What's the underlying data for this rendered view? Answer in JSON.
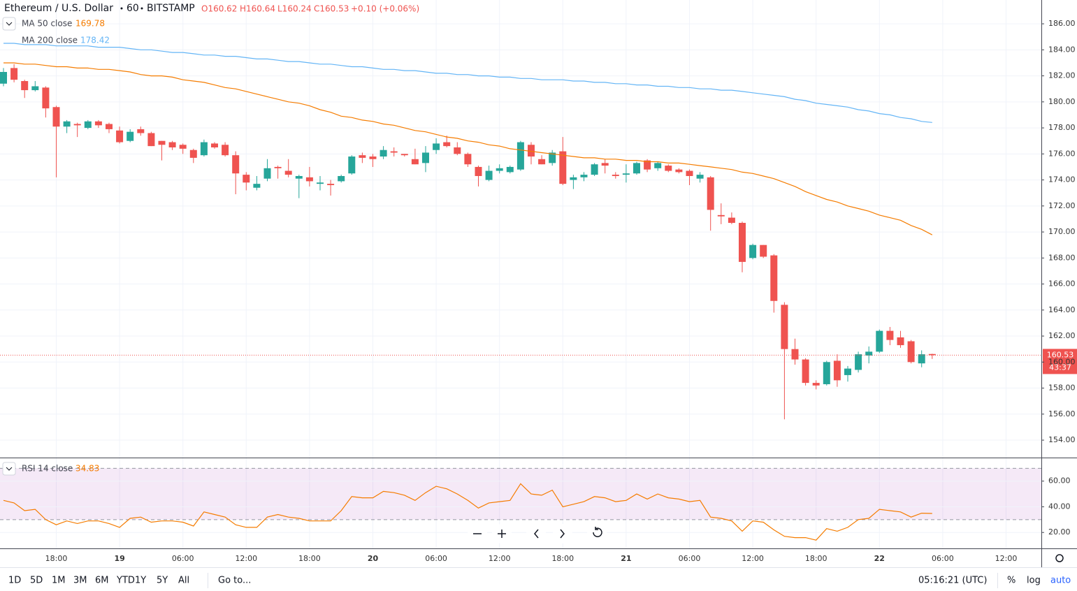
{
  "header": {
    "symbol": "Ethereum / U.S. Dollar",
    "interval": "60",
    "exchange": "BITSTAMP",
    "open": "O160.62",
    "high": "H160.64",
    "low": "L160.24",
    "close": "C160.53",
    "change": "+0.10 (+0.06%)",
    "countdown": "43:37"
  },
  "toolbar": {
    "ranges": [
      "1D",
      "5D",
      "1M",
      "3M",
      "6M",
      "YTD",
      "1Y",
      "5Y",
      "All"
    ],
    "goto": "Go to...",
    "clock": "05:16:21 (UTC)",
    "percent": "%",
    "log": "log",
    "auto": "auto"
  },
  "chart_data": [
    {
      "type": "candlestick",
      "up_color": "#26a69a",
      "down_color": "#ef5350",
      "last_price_color": "#ef5350",
      "categories": [
        null,
        null,
        null,
        null,
        null,
        "18:00",
        null,
        null,
        null,
        null,
        null,
        "19",
        null,
        null,
        null,
        null,
        null,
        "06:00",
        null,
        null,
        null,
        null,
        null,
        "12:00",
        null,
        null,
        null,
        null,
        null,
        "18:00",
        null,
        null,
        null,
        null,
        null,
        "20",
        null,
        null,
        null,
        null,
        null,
        "06:00",
        null,
        null,
        null,
        null,
        null,
        "12:00",
        null,
        null,
        null,
        null,
        null,
        "18:00",
        null,
        null,
        null,
        null,
        null,
        "21",
        null,
        null,
        null,
        null,
        null,
        "06:00",
        null,
        null,
        null,
        null,
        null,
        "12:00",
        null,
        null,
        null,
        null,
        null,
        "18:00",
        null,
        null,
        null,
        null,
        null,
        "22",
        null,
        null,
        null,
        null,
        null,
        "06:00",
        null,
        null,
        null,
        null,
        null,
        "12:00"
      ],
      "open": [
        181.4,
        182.6,
        181.6,
        180.9,
        181.1,
        179.6,
        178.1,
        178.3,
        178.0,
        178.5,
        178.3,
        177.8,
        177.0,
        177.9,
        177.6,
        177.0,
        176.9,
        176.7,
        176.3,
        175.9,
        176.8,
        176.7,
        175.9,
        174.4,
        173.4,
        174.1,
        175.0,
        174.7,
        174.1,
        174.2,
        173.7,
        173.7,
        173.9,
        174.5,
        175.9,
        175.8,
        175.8,
        176.2,
        176.0,
        175.6,
        175.3,
        176.3,
        176.9,
        176.5,
        176.0,
        175.0,
        174.0,
        174.7,
        174.6,
        174.8,
        176.7,
        175.6,
        175.3,
        176.2,
        174.0,
        174.2,
        174.4,
        175.3,
        174.4,
        174.4,
        174.5,
        175.5,
        174.9,
        175.1,
        174.8,
        174.7,
        174.1,
        174.2,
        171.3,
        171.1,
        170.7,
        168.0,
        169.0,
        168.2,
        164.4,
        161.0,
        160.2,
        158.4,
        158.3,
        160.1,
        159.0,
        159.4,
        160.5,
        160.8,
        162.4,
        161.9,
        161.6,
        159.9,
        160.62,
        null,
        null,
        null,
        null,
        null,
        null,
        null
      ],
      "high": [
        182.6,
        182.9,
        181.7,
        181.6,
        181.2,
        179.7,
        178.6,
        178.4,
        178.6,
        178.6,
        178.4,
        178.1,
        177.9,
        178.1,
        177.7,
        177.0,
        177.0,
        176.8,
        176.4,
        177.1,
        176.9,
        176.9,
        176.2,
        174.6,
        174.3,
        175.6,
        175.1,
        175.6,
        174.4,
        175.0,
        174.3,
        174.0,
        174.4,
        175.9,
        176.1,
        176.0,
        176.6,
        176.5,
        176.0,
        176.4,
        176.6,
        177.2,
        177.4,
        176.9,
        176.1,
        175.1,
        175.1,
        175.2,
        175.1,
        177.0,
        176.9,
        175.9,
        176.3,
        177.3,
        174.4,
        174.6,
        175.3,
        175.6,
        174.6,
        175.2,
        175.4,
        175.6,
        175.4,
        175.2,
        174.9,
        174.8,
        174.6,
        174.3,
        172.2,
        171.5,
        170.8,
        169.1,
        169.0,
        168.3,
        164.6,
        161.8,
        160.3,
        158.6,
        160.1,
        160.6,
        159.7,
        160.8,
        161.2,
        162.5,
        162.7,
        162.4,
        161.7,
        160.9,
        160.64,
        null,
        null,
        null,
        null,
        null,
        null,
        null
      ],
      "low": [
        181.2,
        181.5,
        180.3,
        180.8,
        178.8,
        174.2,
        177.6,
        177.3,
        177.9,
        178.0,
        177.6,
        176.8,
        176.9,
        177.4,
        176.6,
        175.5,
        176.3,
        176.0,
        175.3,
        175.8,
        176.4,
        175.8,
        172.9,
        173.2,
        173.2,
        173.9,
        174.1,
        174.2,
        172.6,
        173.5,
        173.2,
        172.8,
        173.8,
        174.4,
        175.3,
        175.0,
        175.6,
        175.8,
        175.8,
        175.2,
        174.6,
        176.0,
        176.5,
        175.9,
        175.0,
        173.5,
        173.9,
        174.5,
        174.5,
        174.7,
        175.2,
        175.2,
        175.1,
        173.6,
        173.3,
        173.9,
        174.3,
        174.5,
        174.1,
        173.8,
        174.4,
        174.6,
        174.7,
        174.6,
        174.5,
        173.6,
        173.8,
        170.1,
        170.6,
        170.6,
        166.9,
        167.9,
        168.0,
        163.8,
        155.6,
        159.8,
        158.2,
        157.9,
        158.2,
        158.1,
        158.5,
        159.2,
        159.9,
        160.7,
        161.3,
        161.1,
        159.9,
        159.6,
        160.24,
        null,
        null,
        null,
        null,
        null,
        null,
        null
      ],
      "close": [
        182.3,
        181.7,
        180.9,
        181.2,
        179.5,
        178.1,
        178.5,
        178.2,
        178.5,
        178.2,
        177.9,
        176.9,
        177.7,
        177.6,
        176.6,
        176.7,
        176.5,
        176.4,
        175.7,
        176.9,
        176.5,
        175.9,
        174.5,
        173.8,
        173.7,
        174.9,
        174.9,
        174.4,
        174.3,
        173.9,
        173.8,
        173.6,
        174.3,
        175.8,
        175.7,
        175.6,
        176.3,
        176.1,
        175.9,
        175.2,
        176.1,
        176.8,
        176.6,
        176.0,
        175.2,
        174.3,
        174.7,
        174.9,
        175.0,
        176.9,
        175.8,
        175.2,
        176.1,
        173.7,
        174.2,
        174.4,
        175.2,
        175.1,
        174.3,
        174.5,
        175.3,
        174.8,
        175.3,
        174.7,
        174.6,
        174.3,
        174.4,
        171.7,
        171.2,
        170.7,
        167.7,
        169.0,
        168.1,
        164.7,
        161.0,
        160.2,
        158.4,
        158.2,
        160.0,
        158.6,
        159.5,
        160.6,
        160.8,
        162.4,
        161.7,
        161.3,
        160.0,
        160.6,
        160.53,
        null,
        null,
        null,
        null,
        null,
        null,
        null
      ],
      "series": [
        {
          "name": "MA 50 close",
          "color": "#f57c00",
          "values": [
            183.0,
            183.0,
            182.9,
            182.9,
            182.8,
            182.7,
            182.7,
            182.6,
            182.6,
            182.5,
            182.5,
            182.4,
            182.3,
            182.1,
            182.0,
            182.0,
            181.9,
            181.7,
            181.6,
            181.5,
            181.3,
            181.1,
            181.0,
            180.8,
            180.6,
            180.4,
            180.2,
            180.0,
            179.9,
            179.7,
            179.4,
            179.2,
            178.9,
            178.8,
            178.6,
            178.5,
            178.3,
            178.2,
            178.0,
            177.8,
            177.7,
            177.5,
            177.3,
            177.2,
            177.0,
            176.9,
            176.7,
            176.6,
            176.4,
            176.3,
            176.2,
            176.1,
            176.0,
            175.9,
            175.8,
            175.7,
            175.7,
            175.6,
            175.6,
            175.5,
            175.5,
            175.4,
            175.4,
            175.3,
            175.3,
            175.2,
            175.1,
            175.0,
            174.9,
            174.8,
            174.6,
            174.5,
            174.3,
            174.1,
            173.8,
            173.5,
            173.1,
            172.8,
            172.5,
            172.3,
            172.0,
            171.8,
            171.6,
            171.3,
            171.1,
            170.9,
            170.5,
            170.2,
            169.78,
            null,
            null,
            null,
            null,
            null,
            null,
            null
          ]
        },
        {
          "name": "MA 200 close",
          "color": "#64b5f6",
          "values": [
            184.5,
            184.5,
            184.4,
            184.4,
            184.4,
            184.3,
            184.3,
            184.3,
            184.3,
            184.2,
            184.2,
            184.2,
            184.1,
            184.0,
            184.0,
            183.9,
            183.8,
            183.8,
            183.7,
            183.6,
            183.6,
            183.5,
            183.5,
            183.4,
            183.3,
            183.3,
            183.2,
            183.1,
            183.1,
            183.0,
            182.9,
            182.9,
            182.8,
            182.7,
            182.7,
            182.6,
            182.5,
            182.5,
            182.4,
            182.4,
            182.3,
            182.2,
            182.2,
            182.1,
            182.1,
            182.0,
            182.0,
            181.9,
            181.9,
            181.8,
            181.8,
            181.7,
            181.7,
            181.7,
            181.6,
            181.6,
            181.5,
            181.5,
            181.4,
            181.4,
            181.3,
            181.3,
            181.2,
            181.2,
            181.1,
            181.1,
            181.0,
            181.0,
            180.9,
            180.9,
            180.8,
            180.7,
            180.6,
            180.5,
            180.4,
            180.2,
            180.1,
            179.9,
            179.8,
            179.7,
            179.6,
            179.4,
            179.3,
            179.1,
            179.0,
            178.8,
            178.7,
            178.5,
            178.42,
            null,
            null,
            null,
            null,
            null,
            null,
            null
          ]
        }
      ],
      "ylim": [
        152.66,
        187.83
      ],
      "yticks": [
        {
          "value": 154,
          "label": "154.00"
        },
        {
          "value": 156,
          "label": "156.00"
        },
        {
          "value": 158,
          "label": "158.00"
        },
        {
          "value": 160,
          "label": "160.00"
        },
        {
          "value": 162,
          "label": "162.00"
        },
        {
          "value": 164,
          "label": "164.00"
        },
        {
          "value": 166,
          "label": "166.00"
        },
        {
          "value": 168,
          "label": "168.00"
        },
        {
          "value": 170,
          "label": "170.00"
        },
        {
          "value": 172,
          "label": "172.00"
        },
        {
          "value": 174,
          "label": "174.00"
        },
        {
          "value": 176,
          "label": "176.00"
        },
        {
          "value": 178,
          "label": "178.00"
        },
        {
          "value": 180,
          "label": "180.00"
        },
        {
          "value": 182,
          "label": "182.00"
        },
        {
          "value": 184,
          "label": "184.00"
        },
        {
          "value": 186,
          "label": "186.00"
        }
      ],
      "grid": true
    },
    {
      "type": "line",
      "title": "RSI 14 close",
      "band": [
        30,
        70
      ],
      "band_color": "#9c27b0",
      "series": [
        {
          "name": "RSI",
          "color": "#f57c00",
          "values": [
            45,
            43,
            37,
            38,
            30,
            26,
            29,
            27,
            29,
            29,
            27,
            24,
            31,
            32,
            28,
            29,
            29,
            28,
            25,
            36,
            34,
            32,
            26,
            24,
            24,
            32,
            34,
            32,
            31,
            29,
            29,
            29,
            37,
            48,
            47,
            47,
            52,
            51,
            49,
            45,
            51,
            56,
            54,
            50,
            45,
            39,
            43,
            44,
            45,
            58,
            50,
            49,
            53,
            40,
            42,
            44,
            48,
            47,
            44,
            45,
            50,
            46,
            50,
            47,
            46,
            44,
            45,
            32,
            31,
            29,
            21,
            29,
            28,
            22,
            17,
            16,
            16,
            14,
            23,
            21,
            24,
            30,
            31,
            38,
            37,
            36,
            32,
            35,
            34.83
          ]
        }
      ],
      "ylim": [
        7.6,
        77.8
      ],
      "yticks": [
        {
          "value": 20,
          "label": "20.00"
        },
        {
          "value": 40,
          "label": "40.00"
        },
        {
          "value": 60,
          "label": "60.00"
        }
      ],
      "grid": true
    }
  ]
}
